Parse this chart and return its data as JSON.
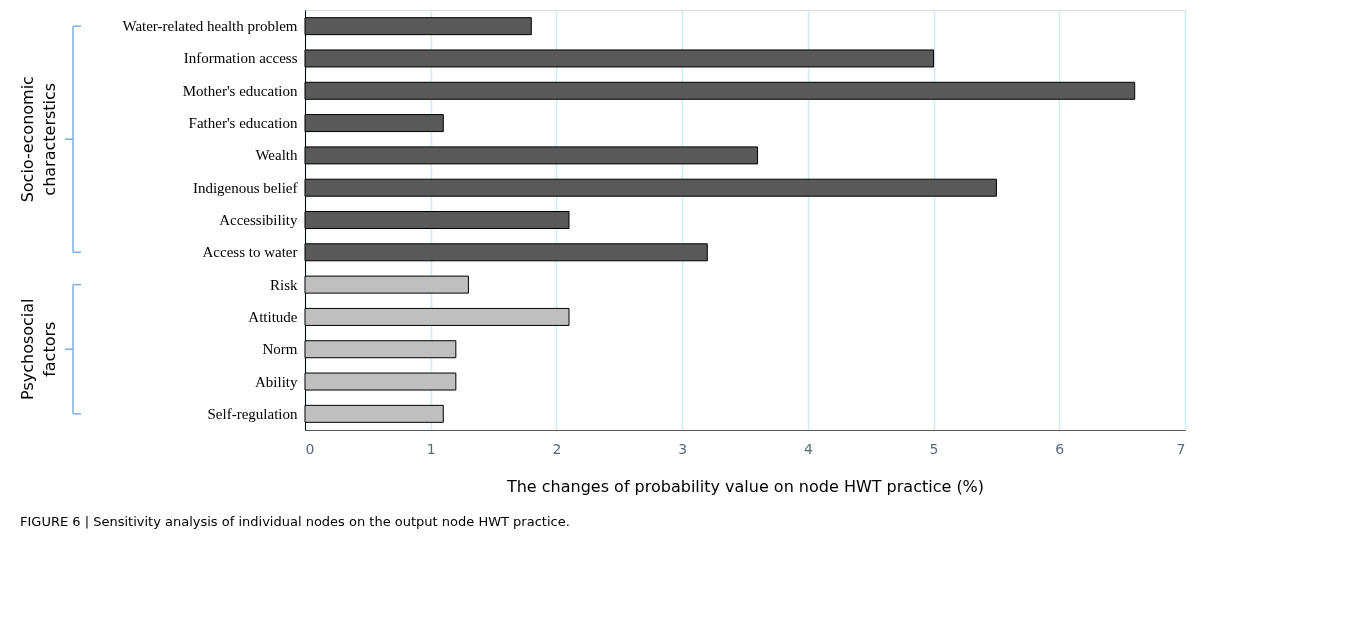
{
  "chart_data": {
    "type": "bar",
    "orientation": "horizontal",
    "title": "FIGURE 6 | Sensitivity analysis of individual nodes on the output node HWT practice.",
    "xlabel": "The changes of probability value on node HWT practice (%)",
    "categories": [
      "Water-related health problem",
      "Information access",
      "Mother's education",
      "Father's education",
      "Wealth",
      "Indigenous belief",
      "Accessibility",
      "Access to water",
      "Risk",
      "Attitude",
      "Norm",
      "Ability",
      "Self-regulation"
    ],
    "values": [
      1.8,
      5.0,
      6.6,
      1.1,
      3.6,
      5.5,
      2.1,
      3.2,
      1.3,
      2.1,
      1.2,
      1.2,
      1.1
    ],
    "colors": [
      "#595959",
      "#595959",
      "#595959",
      "#595959",
      "#595959",
      "#595959",
      "#595959",
      "#595959",
      "#bfbfbf",
      "#bfbfbf",
      "#bfbfbf",
      "#bfbfbf",
      "#bfbfbf"
    ],
    "xlim": [
      0,
      7
    ],
    "xticks": [
      0,
      1,
      2,
      3,
      4,
      5,
      6,
      7
    ],
    "grid": "x",
    "legend": false,
    "annotations": [
      "Socio-economic characterstics",
      "Psychosocial factors"
    ]
  }
}
